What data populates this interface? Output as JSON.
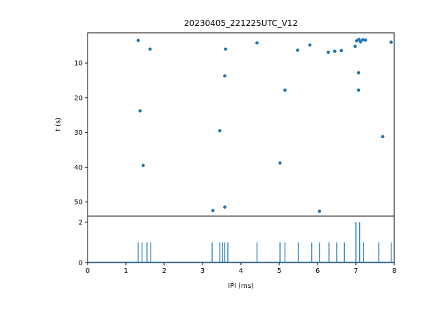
{
  "figure": {
    "title": "20230405_221225UTC_V12",
    "xlabel": "IPI (ms)",
    "ylabel": "t (s)",
    "accent_color": "#1f77b4",
    "spine_color": "#000000"
  },
  "chart_data": [
    {
      "type": "scatter",
      "title": "20230405_221225UTC_V12",
      "xlabel": "",
      "ylabel": "t (s)",
      "xlim": [
        0,
        8
      ],
      "ylim_inverted": [
        1.3,
        54.1
      ],
      "yticks": [
        10,
        20,
        30,
        40,
        50
      ],
      "grid": false,
      "points": [
        [
          1.32,
          3.5
        ],
        [
          1.63,
          6.0
        ],
        [
          3.6,
          6.0
        ],
        [
          4.42,
          4.2
        ],
        [
          5.48,
          6.3
        ],
        [
          5.8,
          4.8
        ],
        [
          6.28,
          6.9
        ],
        [
          6.45,
          6.6
        ],
        [
          6.62,
          6.4
        ],
        [
          6.98,
          5.2
        ],
        [
          7.02,
          3.6
        ],
        [
          7.08,
          3.2
        ],
        [
          7.12,
          3.9
        ],
        [
          7.18,
          3.3
        ],
        [
          7.25,
          3.4
        ],
        [
          7.92,
          4.0
        ],
        [
          3.58,
          13.7
        ],
        [
          7.07,
          12.8
        ],
        [
          5.15,
          17.8
        ],
        [
          7.07,
          17.8
        ],
        [
          1.37,
          23.8
        ],
        [
          3.45,
          29.5
        ],
        [
          7.7,
          31.2
        ],
        [
          1.45,
          39.5
        ],
        [
          5.02,
          38.8
        ],
        [
          3.27,
          52.5
        ],
        [
          3.58,
          51.5
        ],
        [
          6.05,
          52.7
        ]
      ]
    },
    {
      "type": "bar",
      "subtype": "step-histogram",
      "title": "",
      "xlabel": "IPI (ms)",
      "ylabel": "",
      "xlim": [
        0,
        8
      ],
      "ylim": [
        0,
        2.3
      ],
      "yticks": [
        0,
        2
      ],
      "xticks": [
        0,
        1,
        2,
        3,
        4,
        5,
        6,
        7,
        8
      ],
      "grid": false,
      "stems": [
        [
          1.32,
          1
        ],
        [
          1.42,
          1
        ],
        [
          1.55,
          1
        ],
        [
          1.65,
          1
        ],
        [
          3.25,
          1
        ],
        [
          3.45,
          1
        ],
        [
          3.52,
          1
        ],
        [
          3.58,
          1
        ],
        [
          3.66,
          1
        ],
        [
          4.42,
          1
        ],
        [
          5.02,
          1
        ],
        [
          5.15,
          1
        ],
        [
          5.5,
          1
        ],
        [
          5.85,
          1
        ],
        [
          6.05,
          1
        ],
        [
          6.3,
          1
        ],
        [
          6.5,
          1
        ],
        [
          6.7,
          1
        ],
        [
          7.0,
          2
        ],
        [
          7.1,
          2
        ],
        [
          7.2,
          1
        ],
        [
          7.6,
          1
        ],
        [
          7.92,
          1
        ]
      ]
    }
  ]
}
